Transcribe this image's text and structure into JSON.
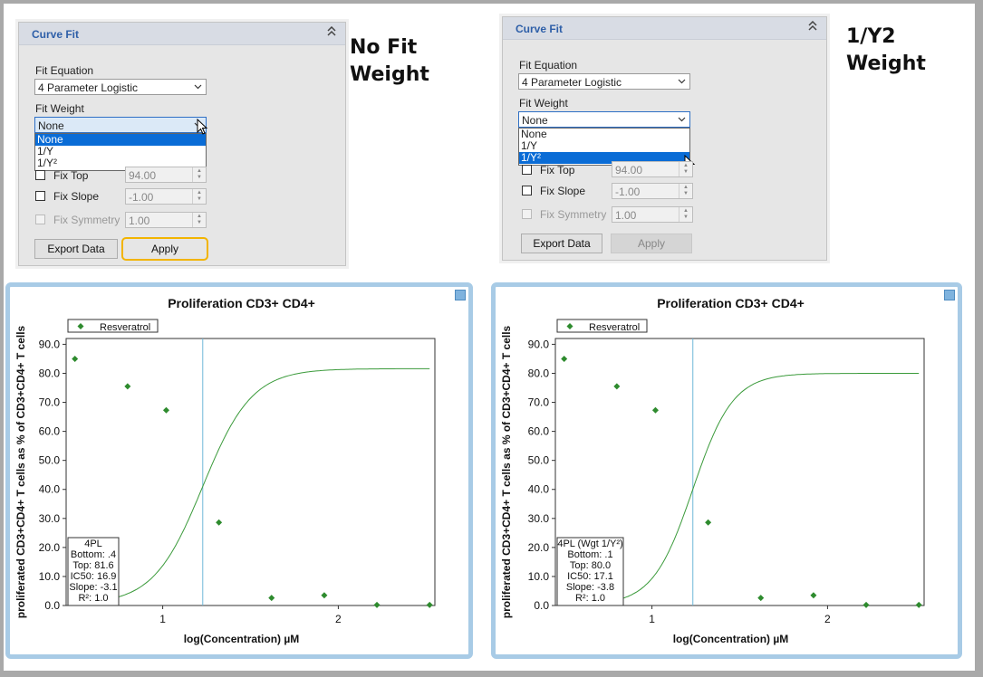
{
  "panels": [
    {
      "title": "Curve Fit",
      "fit_equation_label": "Fit Equation",
      "fit_equation_value": "4 Parameter Logistic",
      "fit_weight_label": "Fit Weight",
      "fit_weight_value": "None",
      "dropdown_options": [
        "None",
        "1/Y",
        "1/Y²"
      ],
      "dropdown_selected": "None",
      "fix_top_label": "Fix Top",
      "fix_top_value": "94.00",
      "fix_slope_label": "Fix Slope",
      "fix_slope_value": "-1.00",
      "fix_symmetry_label": "Fix Symmetry",
      "fix_symmetry_value": "1.00",
      "export_label": "Export Data",
      "apply_label": "Apply",
      "note": "No Fit Weight"
    },
    {
      "title": "Curve Fit",
      "fit_equation_label": "Fit Equation",
      "fit_equation_value": "4 Parameter Logistic",
      "fit_weight_label": "Fit Weight",
      "fit_weight_value": "None",
      "dropdown_options": [
        "None",
        "1/Y",
        "1/Y²"
      ],
      "dropdown_selected": "1/Y²",
      "fix_top_label": "Fix Top",
      "fix_top_value": "94.00",
      "fix_slope_label": "Fix Slope",
      "fix_slope_value": "-1.00",
      "fix_symmetry_label": "Fix Symmetry",
      "fix_symmetry_value": "1.00",
      "export_label": "Export Data",
      "apply_label": "Apply",
      "note": "1/Y2 Weight"
    }
  ],
  "chart_data": [
    {
      "type": "scatter",
      "title": "Proliferation CD3+ CD4+",
      "xlabel": "log(Concentration) µM",
      "ylabel": "proliferated CD3+CD4+ T cells as % of CD3+CD4+ T cells",
      "xlim": [
        0.45,
        2.55
      ],
      "ylim": [
        0,
        92
      ],
      "xticks": [
        1,
        2
      ],
      "yticks": [
        0,
        10,
        20,
        30,
        40,
        50,
        60,
        70,
        80,
        90
      ],
      "ytick_labels": [
        "0.0",
        "10.0",
        "20.0",
        "30.0",
        "40.0",
        "50.0",
        "60.0",
        "70.0",
        "80.0",
        "90.0"
      ],
      "legend": [
        "Resveratrol"
      ],
      "legend_position": "top-left",
      "series": [
        {
          "name": "Resveratrol",
          "x": [
            0.5,
            0.8,
            1.02,
            1.32,
            1.62,
            1.92,
            2.22,
            2.52
          ],
          "y": [
            85.0,
            75.5,
            67.3,
            28.6,
            2.6,
            3.5,
            0.2,
            0.2
          ],
          "color": "#2e8b2e"
        }
      ],
      "fit": {
        "bottom": 0.4,
        "top": 81.6,
        "ic50": 16.9,
        "slope": -3.1
      },
      "ic50_line_x": 1.228,
      "stats": [
        "4PL",
        "Bottom: .4",
        "Top: 81.6",
        "IC50: 16.9",
        "Slope: -3.1",
        "R²: 1.0"
      ]
    },
    {
      "type": "scatter",
      "title": "Proliferation CD3+ CD4+",
      "xlabel": "log(Concentration) µM",
      "ylabel": "proliferated CD3+CD4+ T cells as % of CD3+CD4+ T cells",
      "xlim": [
        0.45,
        2.55
      ],
      "ylim": [
        0,
        92
      ],
      "xticks": [
        1,
        2
      ],
      "yticks": [
        0,
        10,
        20,
        30,
        40,
        50,
        60,
        70,
        80,
        90
      ],
      "ytick_labels": [
        "0.0",
        "10.0",
        "20.0",
        "30.0",
        "40.0",
        "50.0",
        "60.0",
        "70.0",
        "80.0",
        "90.0"
      ],
      "legend": [
        "Resveratrol"
      ],
      "legend_position": "top-left",
      "series": [
        {
          "name": "Resveratrol",
          "x": [
            0.5,
            0.8,
            1.02,
            1.32,
            1.62,
            1.92,
            2.22,
            2.52
          ],
          "y": [
            85.0,
            75.5,
            67.3,
            28.6,
            2.6,
            3.5,
            0.2,
            0.2
          ],
          "color": "#2e8b2e"
        }
      ],
      "fit": {
        "bottom": 0.1,
        "top": 80.0,
        "ic50": 17.1,
        "slope": -3.8
      },
      "ic50_line_x": 1.233,
      "stats": [
        "4PL (Wgt 1/Y²)",
        "Bottom: .1",
        "Top: 80.0",
        "IC50: 17.1",
        "Slope: -3.8",
        "R²: 1.0"
      ]
    }
  ]
}
